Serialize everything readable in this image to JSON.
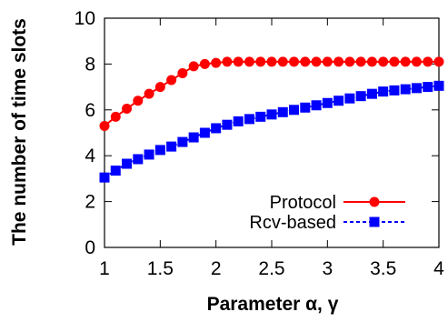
{
  "chart_data": {
    "type": "line",
    "title": "",
    "xlabel": "Parameter α, γ",
    "ylabel": "The number of time slots",
    "xlim": [
      1,
      4
    ],
    "ylim": [
      0,
      10
    ],
    "xticks": [
      "1",
      "1.5",
      "2",
      "2.5",
      "3",
      "3.5",
      "4"
    ],
    "yticks": [
      "0",
      "2",
      "4",
      "6",
      "8",
      "10"
    ],
    "grid": false,
    "legend_position": "bottom-right",
    "series": [
      {
        "name": "Protocol",
        "color": "#ff0000",
        "line_style": "solid",
        "marker": "circle",
        "x": [
          1.0,
          1.1,
          1.2,
          1.3,
          1.4,
          1.5,
          1.6,
          1.7,
          1.8,
          1.9,
          2.0,
          2.1,
          2.2,
          2.3,
          2.4,
          2.5,
          2.6,
          2.7,
          2.8,
          2.9,
          3.0,
          3.1,
          3.2,
          3.3,
          3.4,
          3.5,
          3.6,
          3.7,
          3.8,
          3.9,
          4.0
        ],
        "y": [
          5.3,
          5.7,
          6.05,
          6.4,
          6.7,
          7.0,
          7.3,
          7.6,
          7.9,
          8.0,
          8.05,
          8.1,
          8.1,
          8.1,
          8.1,
          8.1,
          8.1,
          8.1,
          8.1,
          8.1,
          8.1,
          8.1,
          8.1,
          8.1,
          8.1,
          8.1,
          8.1,
          8.1,
          8.1,
          8.1,
          8.1
        ]
      },
      {
        "name": "Rcv-based",
        "color": "#0000ff",
        "line_style": "dashed",
        "marker": "square",
        "x": [
          1.0,
          1.1,
          1.2,
          1.3,
          1.4,
          1.5,
          1.6,
          1.7,
          1.8,
          1.9,
          2.0,
          2.1,
          2.2,
          2.3,
          2.4,
          2.5,
          2.6,
          2.7,
          2.8,
          2.9,
          3.0,
          3.1,
          3.2,
          3.3,
          3.4,
          3.5,
          3.6,
          3.7,
          3.8,
          3.9,
          4.0
        ],
        "y": [
          3.05,
          3.35,
          3.65,
          3.85,
          4.05,
          4.25,
          4.4,
          4.6,
          4.8,
          5.0,
          5.2,
          5.35,
          5.5,
          5.6,
          5.7,
          5.8,
          5.9,
          6.0,
          6.1,
          6.2,
          6.3,
          6.4,
          6.5,
          6.6,
          6.7,
          6.8,
          6.85,
          6.9,
          6.95,
          7.0,
          7.05
        ]
      }
    ]
  }
}
